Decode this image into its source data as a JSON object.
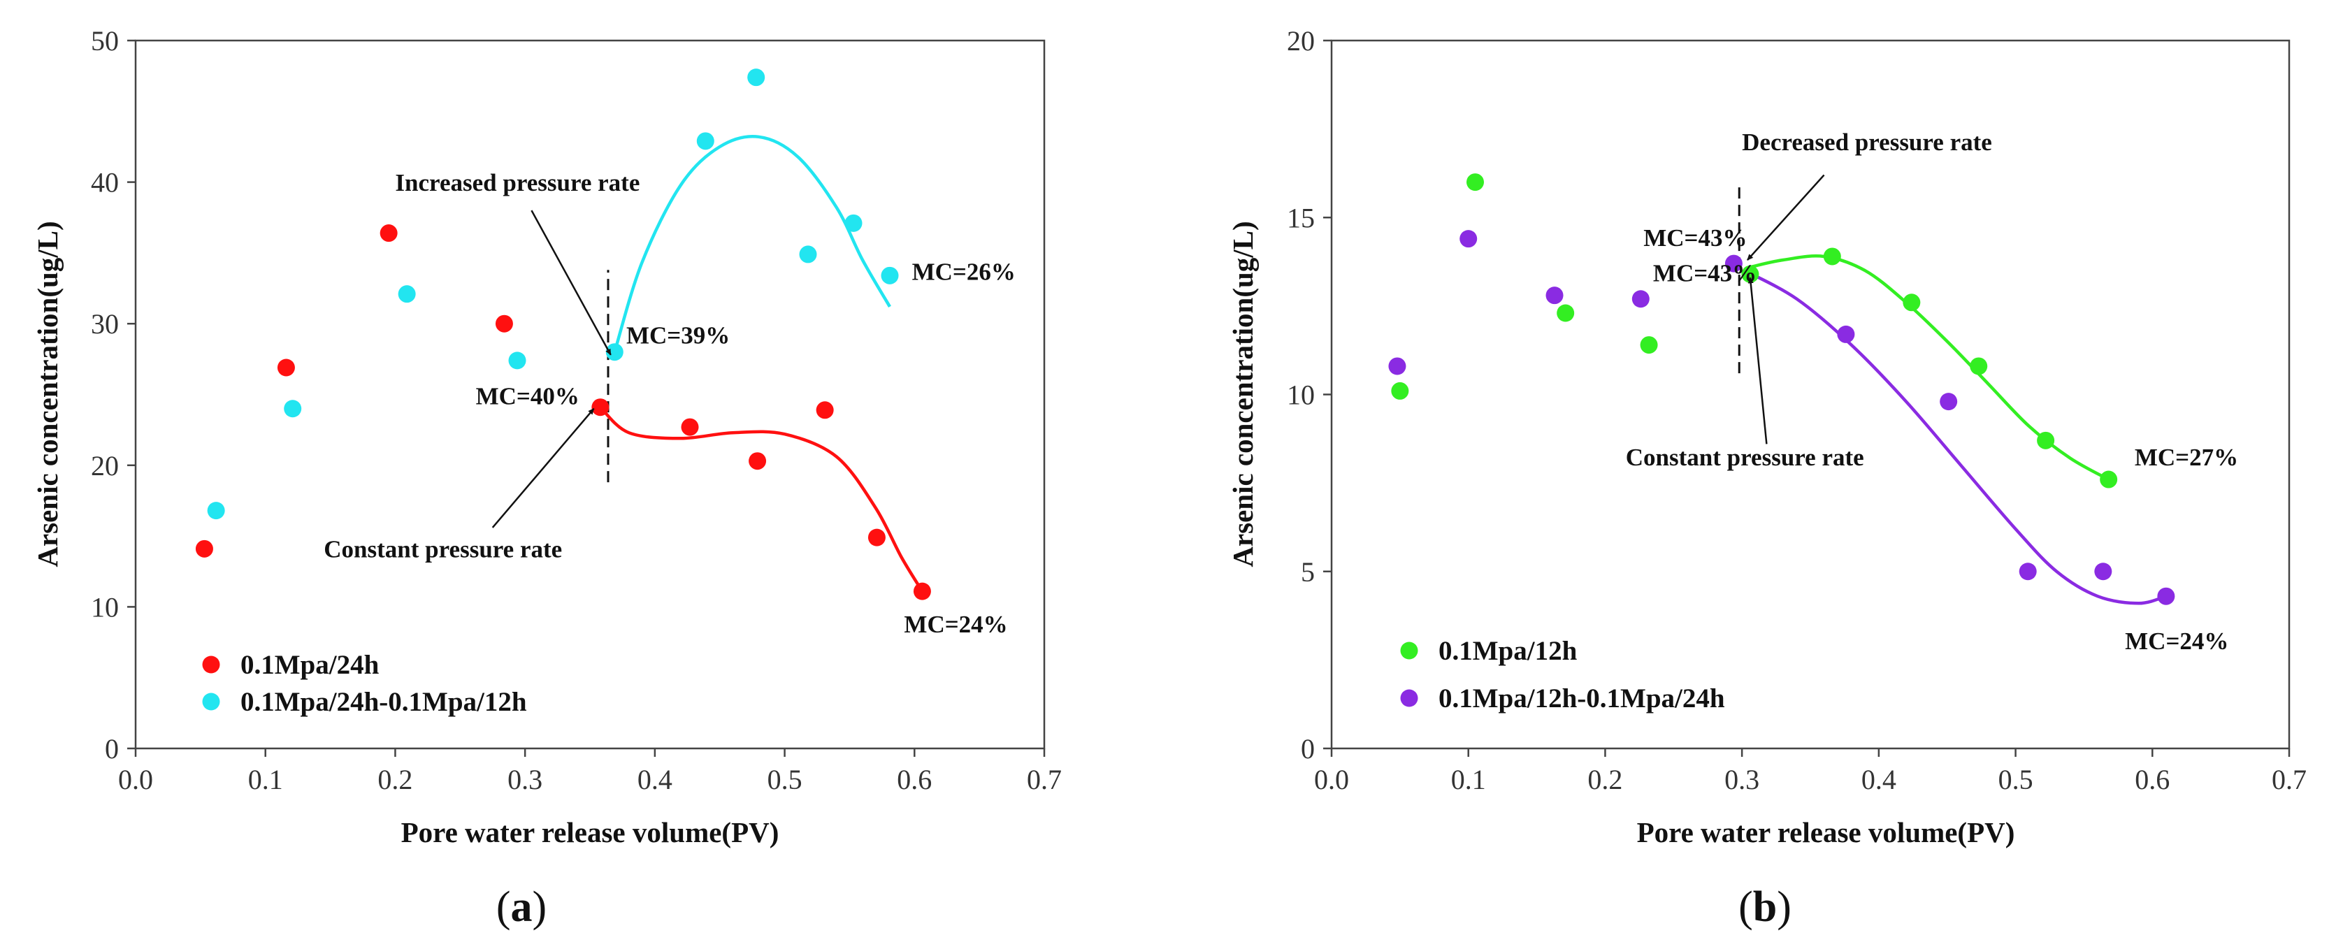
{
  "chart_data": [
    {
      "id": "a",
      "type": "scatter",
      "panel_label": {
        "open": "(",
        "letter": "a",
        "close": ")"
      },
      "xlabel": "Pore water release volume(PV)",
      "ylabel": "Arsenic concentration(ug/L)",
      "xlim": [
        0.0,
        0.7
      ],
      "ylim": [
        0,
        50
      ],
      "xticks": [
        0.0,
        0.1,
        0.2,
        0.3,
        0.4,
        0.5,
        0.6,
        0.7
      ],
      "xtick_labels": [
        "0.0",
        "0.1",
        "0.2",
        "0.3",
        "0.4",
        "0.5",
        "0.6",
        "0.7"
      ],
      "yticks": [
        0,
        10,
        20,
        30,
        40,
        50
      ],
      "ytick_labels": [
        "0",
        "10",
        "20",
        "30",
        "40",
        "50"
      ],
      "legend_position": "bottom-left",
      "series": [
        {
          "name": "0.1Mpa/24h",
          "color": "#ff1010",
          "points": [
            [
              0.053,
              14.1
            ],
            [
              0.116,
              26.9
            ],
            [
              0.195,
              36.4
            ],
            [
              0.284,
              30.0
            ],
            [
              0.358,
              24.1
            ],
            [
              0.427,
              22.7
            ],
            [
              0.479,
              20.3
            ],
            [
              0.531,
              23.9
            ],
            [
              0.571,
              14.9
            ],
            [
              0.606,
              11.1
            ]
          ],
          "fit": [
            [
              0.358,
              24.1
            ],
            [
              0.38,
              22.3
            ],
            [
              0.42,
              21.9
            ],
            [
              0.46,
              22.3
            ],
            [
              0.5,
              22.2
            ],
            [
              0.54,
              20.6
            ],
            [
              0.57,
              17.0
            ],
            [
              0.59,
              13.5
            ],
            [
              0.606,
              11.1
            ]
          ]
        },
        {
          "name": "0.1Mpa/24h-0.1Mpa/12h",
          "color": "#22e5f0",
          "points": [
            [
              0.062,
              16.8
            ],
            [
              0.121,
              24.0
            ],
            [
              0.209,
              32.1
            ],
            [
              0.294,
              27.4
            ],
            [
              0.369,
              28.0
            ],
            [
              0.439,
              42.9
            ],
            [
              0.478,
              47.4
            ],
            [
              0.518,
              34.9
            ],
            [
              0.553,
              37.1
            ],
            [
              0.581,
              33.4
            ]
          ],
          "fit": [
            [
              0.369,
              28.0
            ],
            [
              0.39,
              34.3
            ],
            [
              0.42,
              39.8
            ],
            [
              0.45,
              42.5
            ],
            [
              0.48,
              43.2
            ],
            [
              0.51,
              41.8
            ],
            [
              0.54,
              38.2
            ],
            [
              0.56,
              34.5
            ],
            [
              0.581,
              31.2
            ]
          ]
        }
      ],
      "divider_x": 0.364,
      "divider_ylim": [
        18.8,
        33.8
      ],
      "annotations": [
        {
          "text": "Increased pressure rate",
          "x": 0.2,
          "y": 39.4,
          "arrow_from": [
            0.305,
            38.0
          ],
          "arrow_to": [
            0.366,
            27.8
          ]
        },
        {
          "text": "MC=39%",
          "x": 0.378,
          "y": 28.6
        },
        {
          "text": "MC=26%",
          "x": 0.598,
          "y": 33.1
        },
        {
          "text": "MC=40%",
          "x": 0.262,
          "y": 24.3
        },
        {
          "text": "Constant  pressure rate",
          "x": 0.145,
          "y": 13.5,
          "arrow_from": [
            0.275,
            15.6
          ],
          "arrow_to": [
            0.353,
            24.0
          ]
        },
        {
          "text": "MC=24%",
          "x": 0.592,
          "y": 8.2
        }
      ]
    },
    {
      "id": "b",
      "type": "scatter",
      "panel_label": {
        "open": "(",
        "letter": "b",
        "close": ")"
      },
      "xlabel": "Pore water release volume(PV)",
      "ylabel": "Arsenic concentration(ug/L)",
      "xlim": [
        0.0,
        0.7
      ],
      "ylim": [
        0,
        20
      ],
      "xticks": [
        0.0,
        0.1,
        0.2,
        0.3,
        0.4,
        0.5,
        0.6,
        0.7
      ],
      "xtick_labels": [
        "0.0",
        "0.1",
        "0.2",
        "0.3",
        "0.4",
        "0.5",
        "0.6",
        "0.7"
      ],
      "yticks": [
        0,
        5,
        10,
        15,
        20
      ],
      "ytick_labels": [
        "0",
        "5",
        "10",
        "15",
        "20"
      ],
      "legend_position": "bottom-left",
      "series": [
        {
          "name": "0.1Mpa/12h",
          "color": "#33ee22",
          "points": [
            [
              0.05,
              10.1
            ],
            [
              0.105,
              16.0
            ],
            [
              0.171,
              12.3
            ],
            [
              0.232,
              11.4
            ],
            [
              0.306,
              13.4
            ],
            [
              0.366,
              13.9
            ],
            [
              0.424,
              12.6
            ],
            [
              0.473,
              10.8
            ],
            [
              0.522,
              8.7
            ],
            [
              0.568,
              7.6
            ]
          ],
          "fit": [
            [
              0.306,
              13.6
            ],
            [
              0.33,
              13.8
            ],
            [
              0.36,
              13.9
            ],
            [
              0.39,
              13.5
            ],
            [
              0.42,
              12.6
            ],
            [
              0.45,
              11.5
            ],
            [
              0.48,
              10.3
            ],
            [
              0.51,
              9.1
            ],
            [
              0.54,
              8.2
            ],
            [
              0.568,
              7.6
            ]
          ]
        },
        {
          "name": "0.1Mpa/12h-0.1Mpa/24h",
          "color": "#8a2be2",
          "points": [
            [
              0.048,
              10.8
            ],
            [
              0.1,
              14.4
            ],
            [
              0.163,
              12.8
            ],
            [
              0.226,
              12.7
            ],
            [
              0.294,
              13.7
            ],
            [
              0.376,
              11.7
            ],
            [
              0.451,
              9.8
            ],
            [
              0.509,
              5.0
            ],
            [
              0.564,
              5.0
            ],
            [
              0.61,
              4.3
            ]
          ],
          "fit": [
            [
              0.302,
              13.5
            ],
            [
              0.34,
              12.7
            ],
            [
              0.38,
              11.4
            ],
            [
              0.42,
              9.8
            ],
            [
              0.46,
              8.0
            ],
            [
              0.5,
              6.2
            ],
            [
              0.53,
              5.0
            ],
            [
              0.56,
              4.3
            ],
            [
              0.59,
              4.1
            ],
            [
              0.61,
              4.3
            ]
          ]
        }
      ],
      "divider_x": 0.298,
      "divider_ylim": [
        10.6,
        15.9
      ],
      "annotations": [
        {
          "text": "Decreased pressure rate",
          "x": 0.3,
          "y": 16.9,
          "arrow_from": [
            0.36,
            16.2
          ],
          "arrow_to": [
            0.304,
            13.8
          ]
        },
        {
          "text": "MC=43%",
          "x": 0.228,
          "y": 14.2
        },
        {
          "text": "MC=43%",
          "x": 0.235,
          "y": 13.2
        },
        {
          "text": "Constant  pressure rate",
          "x": 0.215,
          "y": 8.0,
          "arrow_from": [
            0.318,
            8.6
          ],
          "arrow_to": [
            0.306,
            13.3
          ]
        },
        {
          "text": "MC=27%",
          "x": 0.587,
          "y": 8.0
        },
        {
          "text": "MC=24%",
          "x": 0.58,
          "y": 2.8
        }
      ]
    }
  ]
}
